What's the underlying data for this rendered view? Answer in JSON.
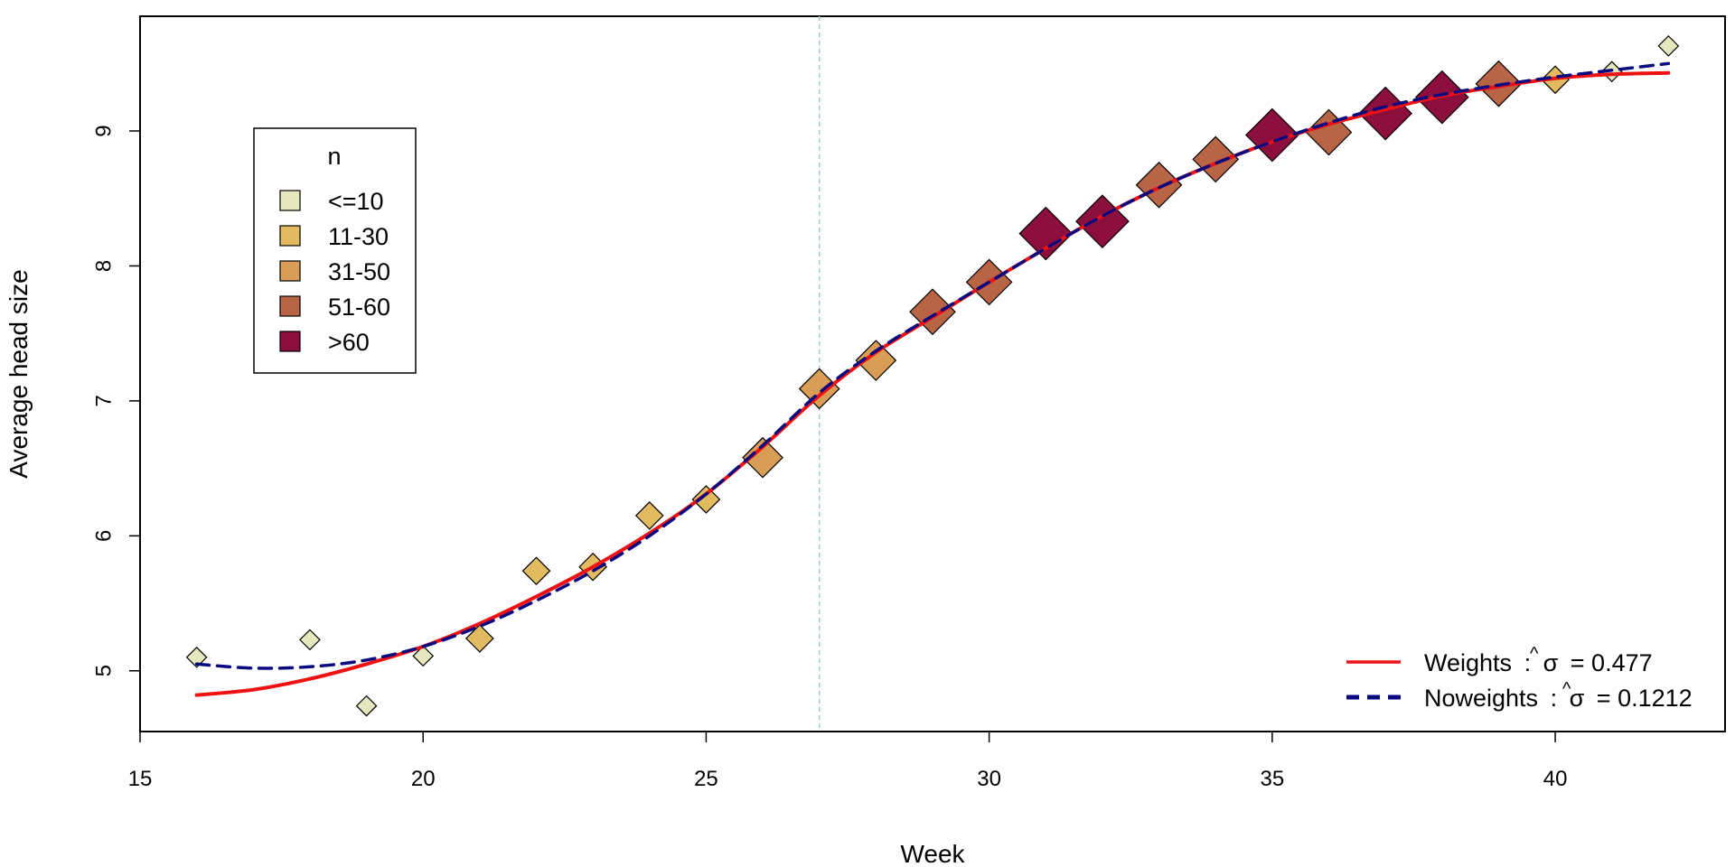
{
  "chart_data": {
    "type": "scatter",
    "xlabel": "Week",
    "ylabel": "Average head size",
    "xlim": [
      15,
      43
    ],
    "ylim": [
      4.55,
      9.85
    ],
    "xticks": [
      "15",
      "20",
      "25",
      "30",
      "35",
      "40"
    ],
    "yticks": [
      "5",
      "6",
      "7",
      "8",
      "9"
    ],
    "grid": false,
    "reference_line": {
      "x": 27,
      "color": "#9ecae1",
      "style": "dashed"
    },
    "size_legend": {
      "title": "n",
      "placement": "top-left",
      "categories": [
        {
          "label": "<=10",
          "color": "#e5e8bf"
        },
        {
          "label": "11-30",
          "color": "#e2bb60"
        },
        {
          "label": "31-50",
          "color": "#d99d55"
        },
        {
          "label": "51-60",
          "color": "#b86546"
        },
        {
          "label": ">60",
          "color": "#8c0e3c"
        }
      ]
    },
    "points": [
      {
        "x": 16,
        "y": 5.1,
        "group": 0
      },
      {
        "x": 18,
        "y": 5.23,
        "group": 0
      },
      {
        "x": 19,
        "y": 4.74,
        "group": 0
      },
      {
        "x": 20,
        "y": 5.11,
        "group": 0
      },
      {
        "x": 21,
        "y": 5.24,
        "group": 1
      },
      {
        "x": 22,
        "y": 5.74,
        "group": 1
      },
      {
        "x": 23,
        "y": 5.77,
        "group": 1
      },
      {
        "x": 24,
        "y": 6.15,
        "group": 1
      },
      {
        "x": 25,
        "y": 6.27,
        "group": 1
      },
      {
        "x": 26,
        "y": 6.58,
        "group": 2
      },
      {
        "x": 27,
        "y": 7.09,
        "group": 2
      },
      {
        "x": 28,
        "y": 7.3,
        "group": 2
      },
      {
        "x": 29,
        "y": 7.66,
        "group": 3
      },
      {
        "x": 30,
        "y": 7.88,
        "group": 3
      },
      {
        "x": 31,
        "y": 8.24,
        "group": 4
      },
      {
        "x": 32,
        "y": 8.33,
        "group": 4
      },
      {
        "x": 33,
        "y": 8.6,
        "group": 3
      },
      {
        "x": 34,
        "y": 8.79,
        "group": 3
      },
      {
        "x": 35,
        "y": 8.97,
        "group": 4
      },
      {
        "x": 36,
        "y": 8.99,
        "group": 3
      },
      {
        "x": 37,
        "y": 9.13,
        "group": 4
      },
      {
        "x": 38,
        "y": 9.25,
        "group": 4
      },
      {
        "x": 39,
        "y": 9.35,
        "group": 3
      },
      {
        "x": 40,
        "y": 9.38,
        "group": 1
      },
      {
        "x": 41,
        "y": 9.44,
        "group": 0
      },
      {
        "x": 42,
        "y": 9.63,
        "group": 0
      }
    ],
    "series": [
      {
        "name": "Weights : σ̂ = 0.477",
        "legend_prefix": "Weights",
        "legend_value": "= 0.477",
        "color": "#ee1111",
        "style": "solid",
        "x": [
          16,
          17,
          18,
          19,
          20,
          21,
          22,
          23,
          24,
          25,
          26,
          27,
          28,
          29,
          30,
          31,
          32,
          33,
          34,
          35,
          36,
          37,
          38,
          39,
          40,
          41,
          42
        ],
        "y": [
          4.82,
          4.86,
          4.94,
          5.05,
          5.18,
          5.35,
          5.55,
          5.77,
          6.02,
          6.31,
          6.66,
          7.04,
          7.36,
          7.62,
          7.88,
          8.13,
          8.37,
          8.58,
          8.76,
          8.92,
          9.05,
          9.16,
          9.26,
          9.33,
          9.39,
          9.42,
          9.43
        ]
      },
      {
        "name": "Noweights : σ̂ = 0.1212",
        "legend_prefix": "Noweights",
        "legend_value": "= 0.1212",
        "color": "#0a0a80",
        "style": "dashed",
        "x": [
          16,
          17,
          18,
          19,
          20,
          21,
          22,
          23,
          24,
          25,
          26,
          27,
          28,
          29,
          30,
          31,
          32,
          33,
          34,
          35,
          36,
          37,
          38,
          39,
          40,
          41,
          42
        ],
        "y": [
          5.05,
          5.02,
          5.03,
          5.08,
          5.18,
          5.33,
          5.52,
          5.74,
          6.0,
          6.31,
          6.67,
          7.06,
          7.37,
          7.63,
          7.88,
          8.13,
          8.37,
          8.58,
          8.76,
          8.92,
          9.06,
          9.18,
          9.27,
          9.34,
          9.4,
          9.45,
          9.5
        ]
      }
    ],
    "series_legend_placement": "bottom-right"
  }
}
